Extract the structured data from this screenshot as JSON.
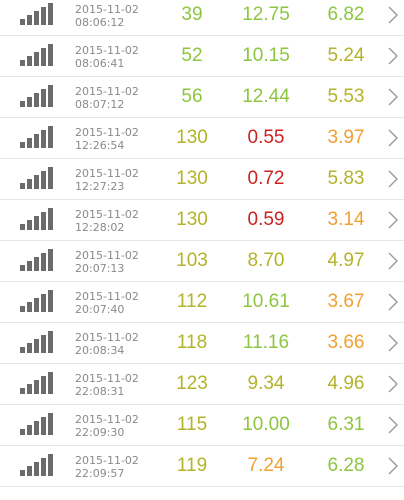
{
  "colors": {
    "green": "#8cc63f",
    "olive": "#b3b32a",
    "orange": "#f0a030",
    "red": "#cc2222",
    "icon": "#6b6b6b",
    "chevron": "#9a9a9a"
  },
  "rows": [
    {
      "date": "2015-11-02",
      "time": "08:06:12",
      "ping": "39",
      "download": "12.75",
      "upload": "6.82",
      "ping_color": "green",
      "download_color": "green",
      "upload_color": "green"
    },
    {
      "date": "2015-11-02",
      "time": "08:06:41",
      "ping": "52",
      "download": "10.15",
      "upload": "5.24",
      "ping_color": "green",
      "download_color": "green",
      "upload_color": "olive"
    },
    {
      "date": "2015-11-02",
      "time": "08:07:12",
      "ping": "56",
      "download": "12.44",
      "upload": "5.53",
      "ping_color": "green",
      "download_color": "green",
      "upload_color": "olive"
    },
    {
      "date": "2015-11-02",
      "time": "12:26:54",
      "ping": "130",
      "download": "0.55",
      "upload": "3.97",
      "ping_color": "olive",
      "download_color": "red",
      "upload_color": "orange"
    },
    {
      "date": "2015-11-02",
      "time": "12:27:23",
      "ping": "130",
      "download": "0.72",
      "upload": "5.83",
      "ping_color": "olive",
      "download_color": "red",
      "upload_color": "olive"
    },
    {
      "date": "2015-11-02",
      "time": "12:28:02",
      "ping": "130",
      "download": "0.59",
      "upload": "3.14",
      "ping_color": "olive",
      "download_color": "red",
      "upload_color": "orange"
    },
    {
      "date": "2015-11-02",
      "time": "20:07:13",
      "ping": "103",
      "download": "8.70",
      "upload": "4.97",
      "ping_color": "olive",
      "download_color": "olive",
      "upload_color": "olive"
    },
    {
      "date": "2015-11-02",
      "time": "20:07:40",
      "ping": "112",
      "download": "10.61",
      "upload": "3.67",
      "ping_color": "olive",
      "download_color": "green",
      "upload_color": "orange"
    },
    {
      "date": "2015-11-02",
      "time": "20:08:34",
      "ping": "118",
      "download": "11.16",
      "upload": "3.66",
      "ping_color": "olive",
      "download_color": "green",
      "upload_color": "orange"
    },
    {
      "date": "2015-11-02",
      "time": "22:08:31",
      "ping": "123",
      "download": "9.34",
      "upload": "4.96",
      "ping_color": "olive",
      "download_color": "olive",
      "upload_color": "olive"
    },
    {
      "date": "2015-11-02",
      "time": "22:09:30",
      "ping": "115",
      "download": "10.00",
      "upload": "6.31",
      "ping_color": "olive",
      "download_color": "green",
      "upload_color": "green"
    },
    {
      "date": "2015-11-02",
      "time": "22:09:57",
      "ping": "119",
      "download": "7.24",
      "upload": "6.28",
      "ping_color": "olive",
      "download_color": "orange",
      "upload_color": "green"
    }
  ]
}
